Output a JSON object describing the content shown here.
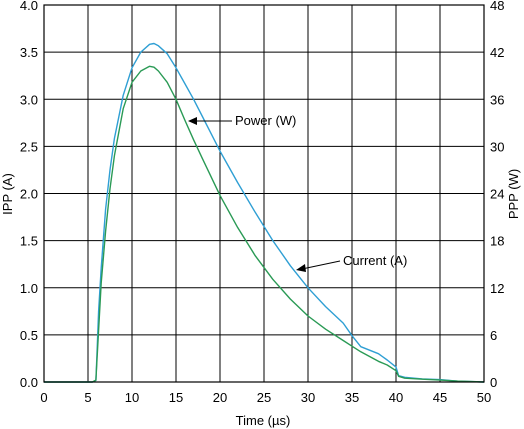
{
  "chart_data": {
    "type": "line",
    "xlabel": "Time (µs)",
    "ylabel_left": "IPP (A)",
    "ylabel_right": "PPP (W)",
    "xlim": [
      0,
      50
    ],
    "ylim_left": [
      0,
      4.0
    ],
    "ylim_right": [
      0,
      48
    ],
    "x_ticks": [
      "0",
      "5",
      "10",
      "15",
      "20",
      "25",
      "30",
      "35",
      "40",
      "45",
      "50"
    ],
    "y_ticks_left": [
      "0.0",
      "0.5",
      "1.0",
      "1.5",
      "2.0",
      "2.5",
      "3.0",
      "3.5",
      "4.0"
    ],
    "y_ticks_right": [
      "0",
      "6",
      "12",
      "18",
      "24",
      "30",
      "36",
      "42",
      "48"
    ],
    "grid": true,
    "annotations": [
      {
        "text": "Power (W)",
        "series": "Power (W)"
      },
      {
        "text": "Current (A)",
        "series": "Current (A)"
      }
    ],
    "series": [
      {
        "name": "Power (W)",
        "axis": "right",
        "color": "#2f9fd4",
        "x": [
          0,
          2,
          4,
          5.5,
          5.9,
          6.0,
          6.2,
          6.5,
          7,
          7.5,
          8,
          9,
          10,
          11,
          12,
          12.5,
          13,
          14,
          15,
          16,
          17,
          18,
          20,
          22,
          24,
          26,
          28,
          30,
          32,
          34,
          35,
          36,
          38,
          39,
          40,
          40.3,
          41,
          43,
          45,
          47,
          50
        ],
        "values": [
          0,
          0,
          0,
          0,
          0.2,
          3.0,
          9.0,
          14.5,
          22.0,
          27.0,
          31.0,
          36.5,
          40.0,
          42.0,
          43.0,
          43.1,
          42.8,
          41.8,
          40.0,
          38.0,
          36.0,
          33.8,
          29.4,
          25.4,
          21.6,
          18.0,
          14.8,
          12.0,
          9.6,
          7.5,
          5.9,
          4.5,
          3.6,
          2.8,
          1.9,
          0.8,
          0.6,
          0.4,
          0.3,
          0.1,
          0
        ]
      },
      {
        "name": "Current (A)",
        "axis": "left",
        "color": "#2a9a55",
        "x": [
          0,
          2,
          4,
          5.5,
          5.9,
          6.0,
          6.2,
          6.5,
          7,
          7.5,
          8,
          9,
          10,
          11,
          12,
          12.5,
          13,
          14,
          15,
          16,
          17,
          18,
          20,
          22,
          24,
          26,
          28,
          30,
          32,
          34,
          35,
          36,
          38,
          39,
          40,
          40.3,
          41,
          43,
          45,
          47,
          50
        ],
        "values": [
          0,
          0,
          0,
          0,
          0.02,
          0.2,
          0.55,
          1.05,
          1.6,
          2.05,
          2.4,
          2.9,
          3.18,
          3.3,
          3.35,
          3.34,
          3.3,
          3.18,
          3.0,
          2.78,
          2.57,
          2.37,
          1.98,
          1.64,
          1.34,
          1.09,
          0.88,
          0.7,
          0.56,
          0.44,
          0.38,
          0.32,
          0.22,
          0.18,
          0.12,
          0.06,
          0.04,
          0.03,
          0.02,
          0.01,
          0
        ]
      }
    ]
  }
}
